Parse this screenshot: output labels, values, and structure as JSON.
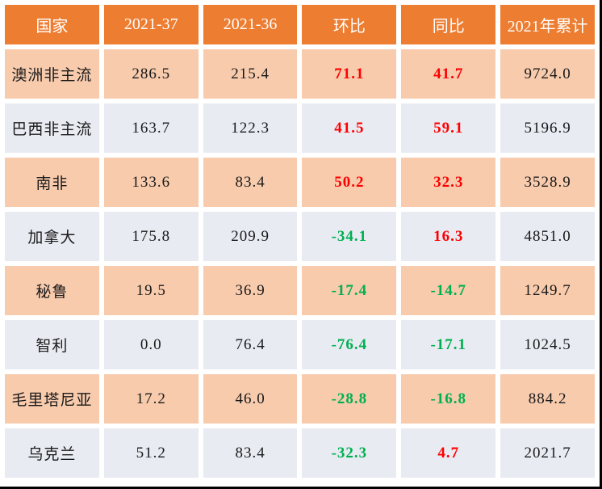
{
  "colors": {
    "header_bg": "#ED7D31",
    "header_text": "#FFFFFF",
    "row_odd_bg": "#F8CBAD",
    "row_even_bg": "#E9EBF3",
    "positive_text": "#FE0000",
    "negative_text": "#00B050",
    "value_text": "#1A1A1A",
    "gridline": "#FFFFFF",
    "frame_border": "#000000"
  },
  "chart_data": {
    "type": "table",
    "columns": [
      {
        "id": "country",
        "label": "国家"
      },
      {
        "id": "w2021_37",
        "label": "2021-37"
      },
      {
        "id": "w2021_36",
        "label": "2021-36"
      },
      {
        "id": "mom",
        "label": "环比"
      },
      {
        "id": "yoy",
        "label": "同比"
      },
      {
        "id": "cumulative",
        "label": "2021年累计"
      }
    ],
    "trend_columns": [
      "mom",
      "yoy"
    ],
    "rows": [
      {
        "country": "澳洲非主流",
        "w2021_37": "286.5",
        "w2021_36": "215.4",
        "mom": "71.1",
        "yoy": "41.7",
        "cumulative": "9724.0"
      },
      {
        "country": "巴西非主流",
        "w2021_37": "163.7",
        "w2021_36": "122.3",
        "mom": "41.5",
        "yoy": "59.1",
        "cumulative": "5196.9"
      },
      {
        "country": "南非",
        "w2021_37": "133.6",
        "w2021_36": "83.4",
        "mom": "50.2",
        "yoy": "32.3",
        "cumulative": "3528.9"
      },
      {
        "country": "加拿大",
        "w2021_37": "175.8",
        "w2021_36": "209.9",
        "mom": "-34.1",
        "yoy": "16.3",
        "cumulative": "4851.0"
      },
      {
        "country": "秘鲁",
        "w2021_37": "19.5",
        "w2021_36": "36.9",
        "mom": "-17.4",
        "yoy": "-14.7",
        "cumulative": "1249.7"
      },
      {
        "country": "智利",
        "w2021_37": "0.0",
        "w2021_36": "76.4",
        "mom": "-76.4",
        "yoy": "-17.1",
        "cumulative": "1024.5"
      },
      {
        "country": "毛里塔尼亚",
        "w2021_37": "17.2",
        "w2021_36": "46.0",
        "mom": "-28.8",
        "yoy": "-16.8",
        "cumulative": "884.2"
      },
      {
        "country": "乌克兰",
        "w2021_37": "51.2",
        "w2021_36": "83.4",
        "mom": "-32.3",
        "yoy": "4.7",
        "cumulative": "2021.7"
      }
    ]
  }
}
